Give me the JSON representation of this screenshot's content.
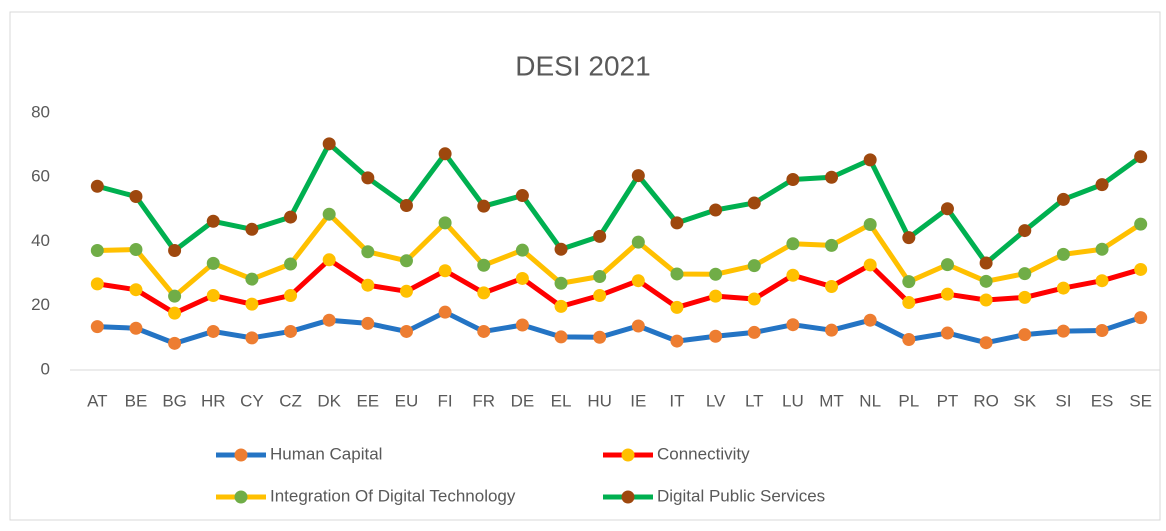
{
  "chart_data": {
    "type": "line",
    "stacked": true,
    "title": "DESI 2021",
    "categories": [
      "AT",
      "BE",
      "BG",
      "HR",
      "CY",
      "CZ",
      "DK",
      "EE",
      "EU",
      "FI",
      "FR",
      "DE",
      "EL",
      "HU",
      "IE",
      "IT",
      "LV",
      "LT",
      "LU",
      "MT",
      "NL",
      "PL",
      "PT",
      "RO",
      "SK",
      "SI",
      "ES",
      "SE"
    ],
    "series": [
      {
        "name": "Human Capital",
        "color": "#2474c4",
        "marker_color": "#ed7d31",
        "values": [
          13.5,
          13,
          8.3,
          12,
          10,
          12,
          15.5,
          14.5,
          12,
          18,
          12,
          14,
          10.3,
          10.2,
          13.7,
          9,
          10.5,
          11.7,
          14.1,
          12.4,
          15.5,
          9.5,
          11.5,
          8.5,
          11,
          12.1,
          12.3,
          16.3
        ]
      },
      {
        "name": "Connectivity",
        "color": "#ff0000",
        "marker_color": "#ffc000",
        "values": [
          13.3,
          12,
          9.4,
          11.2,
          10.5,
          11.2,
          18.8,
          11.9,
          12.5,
          12.9,
          12,
          14.5,
          9.5,
          13,
          14.1,
          10.5,
          12.5,
          10.4,
          15.4,
          13.6,
          17.2,
          11.5,
          12.1,
          13.3,
          11.6,
          13.4,
          15.5,
          15
        ]
      },
      {
        "name": "Integration Of Digital Technology",
        "color": "#ffc000",
        "marker_color": "#70ad47",
        "values": [
          10.4,
          12.5,
          5.3,
          10,
          7.8,
          9.8,
          14.2,
          10.4,
          9.5,
          14.9,
          8.6,
          8.8,
          7.2,
          5.9,
          12,
          10.4,
          6.8,
          10.4,
          9.8,
          12.8,
          12.6,
          6.5,
          9.2,
          5.8,
          7.4,
          10.5,
          9.8,
          14.1
        ]
      },
      {
        "name": "Digital Public Services",
        "color": "#00b050",
        "marker_color": "#9e480e",
        "values": [
          20,
          16.5,
          14.2,
          13.1,
          15.5,
          14.6,
          21.9,
          23,
          17.2,
          21.5,
          18.4,
          17,
          10.6,
          12.5,
          20.7,
          15.9,
          20,
          19.5,
          20,
          21.2,
          20.1,
          13.7,
          17.4,
          5.7,
          13.4,
          17.1,
          20.1,
          21
        ]
      }
    ],
    "ylim": [
      0,
      80
    ],
    "yticks": [
      0,
      20,
      40,
      60,
      80
    ],
    "grid": false
  }
}
